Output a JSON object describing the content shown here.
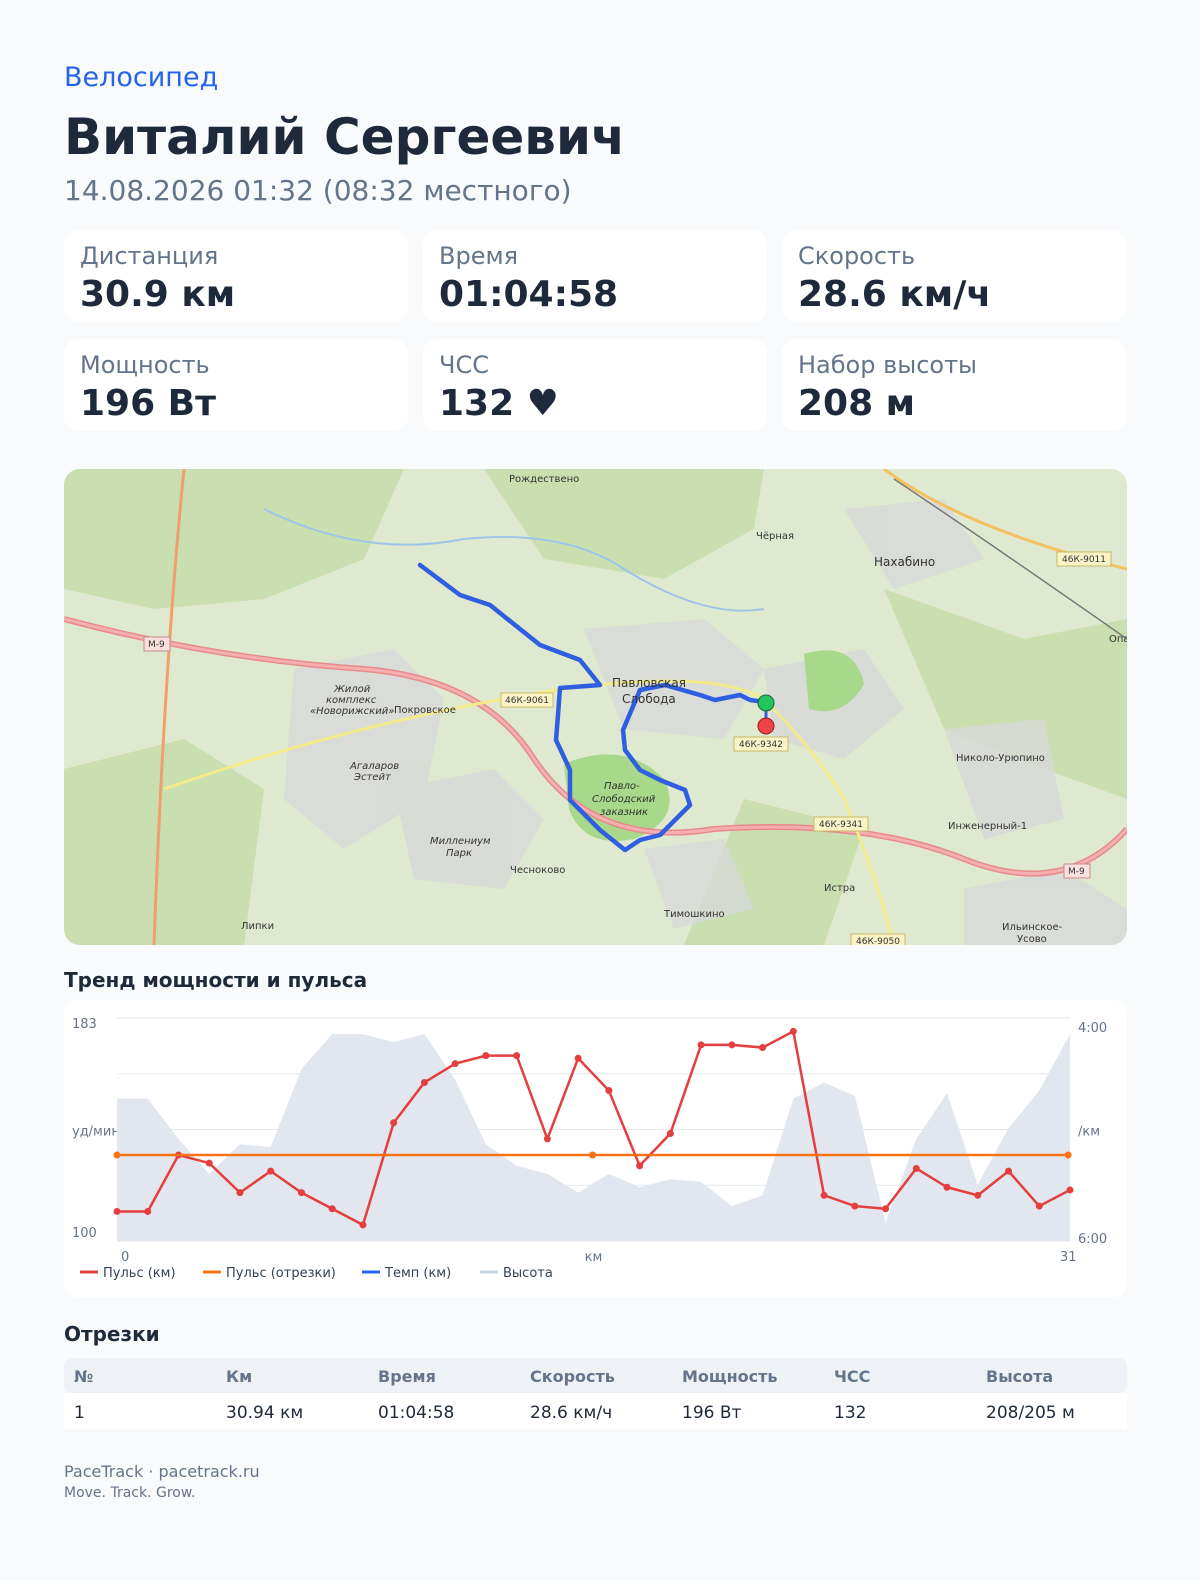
{
  "header": {
    "sport": "Велосипед",
    "name": "Виталий Сергеевич",
    "date": "14.08.2026 01:32 (08:32 местного)"
  },
  "stats": [
    {
      "label": "Дистанция",
      "value": "30.9 км"
    },
    {
      "label": "Время",
      "value": "01:04:58"
    },
    {
      "label": "Скорость",
      "value": "28.6 км/ч"
    },
    {
      "label": "Мощность",
      "value": "196 Вт"
    },
    {
      "label": "ЧСС",
      "value": "132 ♥"
    },
    {
      "label": "Набор высоты",
      "value": "208 м"
    }
  ],
  "map": {
    "labels": [
      "Рождествено",
      "Чёрная",
      "Нахабино",
      "46К-9011",
      "М-9",
      "Павловская",
      "Слобода",
      "46К-9061",
      "Покровское",
      "Жилой",
      "комплекс",
      "«Новорижский»",
      "46К-9342",
      "Агаларов",
      "Эстейт",
      "Павло-",
      "Слободский",
      "заказник",
      "Николо-Урюпино",
      "46К-9341",
      "Инженерный-1",
      "Миллениум",
      "Парк",
      "Чесноково",
      "Истра",
      "М-9",
      "Тимошкино",
      "Липки",
      "46К-9050",
      "Ильинское-",
      "Усово",
      "Опа"
    ]
  },
  "chart_title": "Тренд мощности и пульса",
  "chart_data": {
    "type": "line",
    "xlim": [
      0,
      31
    ],
    "xticks": [
      0,
      31
    ],
    "xlabel": "км",
    "ylim": [
      100,
      183
    ],
    "yticks": [
      100,
      183
    ],
    "ylabel": "уд/мин",
    "y2lim": [
      6,
      4
    ],
    "y2ticks": [
      {
        "value": 4,
        "label": "4:00"
      },
      {
        "value": 6,
        "label": "6:00"
      }
    ],
    "y2label": "/км",
    "grid": true,
    "series": [
      {
        "name": "Пульс (км)",
        "color": "#e53e3e",
        "type": "line",
        "x": [
          0,
          1,
          2,
          3,
          4,
          5,
          6,
          7,
          8,
          9,
          10,
          11,
          12,
          13,
          14,
          15,
          16,
          17,
          18,
          19,
          20,
          21,
          22,
          23,
          24,
          25,
          26,
          27,
          28,
          29,
          30,
          31
        ],
        "values": [
          111,
          111,
          132,
          129,
          118,
          126,
          118,
          112,
          106,
          144,
          159,
          166,
          169,
          169,
          138,
          168,
          156,
          128,
          140,
          173,
          173,
          172,
          178,
          117,
          113,
          112,
          127,
          120,
          117,
          126,
          113,
          119
        ]
      },
      {
        "name": "Пульс (отрезки)",
        "color": "#f97316",
        "type": "line",
        "x": [
          0,
          15.47,
          30.94
        ],
        "values": [
          132,
          132,
          132
        ]
      },
      {
        "name": "Темп (км)",
        "color": "#2563eb",
        "type": "line",
        "axis": "y2",
        "x": [
          0,
          1,
          2,
          3,
          4,
          5,
          6,
          7,
          8,
          9,
          10,
          11,
          12,
          13,
          14,
          15,
          16,
          17,
          18,
          19,
          20,
          21,
          22,
          23,
          24,
          25,
          26,
          27,
          28,
          29,
          30,
          31
        ],
        "values": [
          null,
          null,
          null,
          null,
          null,
          null,
          null,
          null,
          null,
          null,
          null,
          null,
          null,
          null,
          null,
          null,
          null,
          null,
          null,
          null,
          null,
          null,
          null,
          null,
          null,
          null,
          null,
          null,
          null,
          null,
          null,
          null
        ]
      },
      {
        "name": "Высота",
        "color": "#e2e7ef",
        "type": "area",
        "x": [
          0,
          1,
          2,
          3,
          4,
          5,
          6,
          7,
          8,
          9,
          10,
          11,
          12,
          13,
          14,
          15,
          16,
          17,
          18,
          19,
          20,
          21,
          22,
          23,
          24,
          25,
          26,
          27,
          28,
          29,
          30,
          31
        ],
        "values": [
          153,
          153,
          138,
          125,
          136,
          135,
          164,
          177,
          177,
          174,
          177,
          160,
          136,
          128,
          125,
          118,
          125,
          120,
          123,
          122,
          113,
          117,
          153,
          159,
          154,
          107,
          138,
          155,
          121,
          142,
          156,
          177
        ]
      }
    ]
  },
  "segments": {
    "title": "Отрезки",
    "columns": [
      "№",
      "Км",
      "Время",
      "Скорость",
      "Мощность",
      "ЧСС",
      "Высота"
    ],
    "rows": [
      [
        "1",
        "30.94 км",
        "01:04:58",
        "28.6 км/ч",
        "196 Вт",
        "132",
        "208/205 м"
      ]
    ]
  },
  "footer": {
    "brand": "PaceTrack · pacetrack.ru",
    "tagline": "Move. Track. Grow."
  }
}
